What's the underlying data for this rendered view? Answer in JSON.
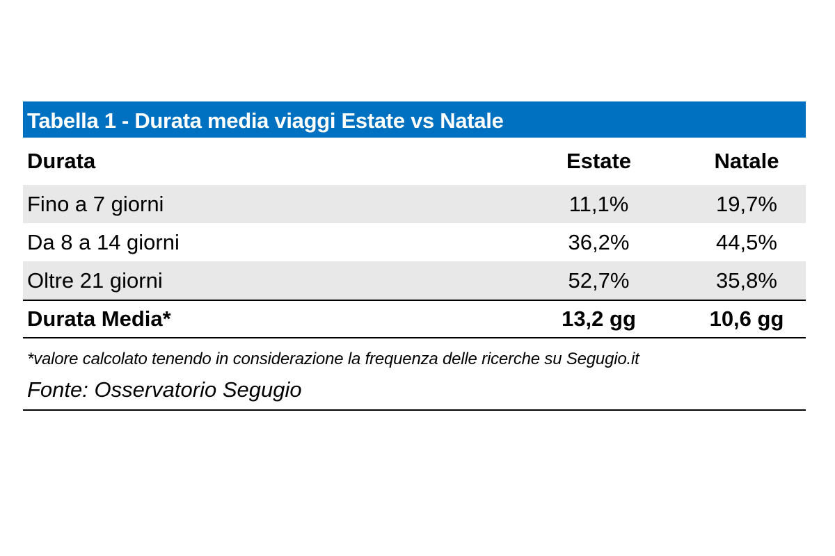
{
  "title": "Tabella 1 - Durata media viaggi Estate vs Natale",
  "header": {
    "durata": "Durata",
    "estate": "Estate",
    "natale": "Natale"
  },
  "rows": [
    {
      "label": "Fino a 7 giorni",
      "estate": "11,1%",
      "natale": "19,7%"
    },
    {
      "label": "Da 8 a 14 giorni",
      "estate": "36,2%",
      "natale": "44,5%"
    },
    {
      "label": "Oltre 21 giorni",
      "estate": "52,7%",
      "natale": "35,8%"
    }
  ],
  "total": {
    "label": "Durata Media*",
    "estate": "13,2 gg",
    "natale": "10,6 gg"
  },
  "note": "*valore calcolato tenendo in considerazione la frequenza delle ricerche su Segugio.it",
  "source": "Fonte: Osservatorio Segugio",
  "colors": {
    "title_bg": "#0070c0",
    "row_shade": "#e8e8e8"
  }
}
